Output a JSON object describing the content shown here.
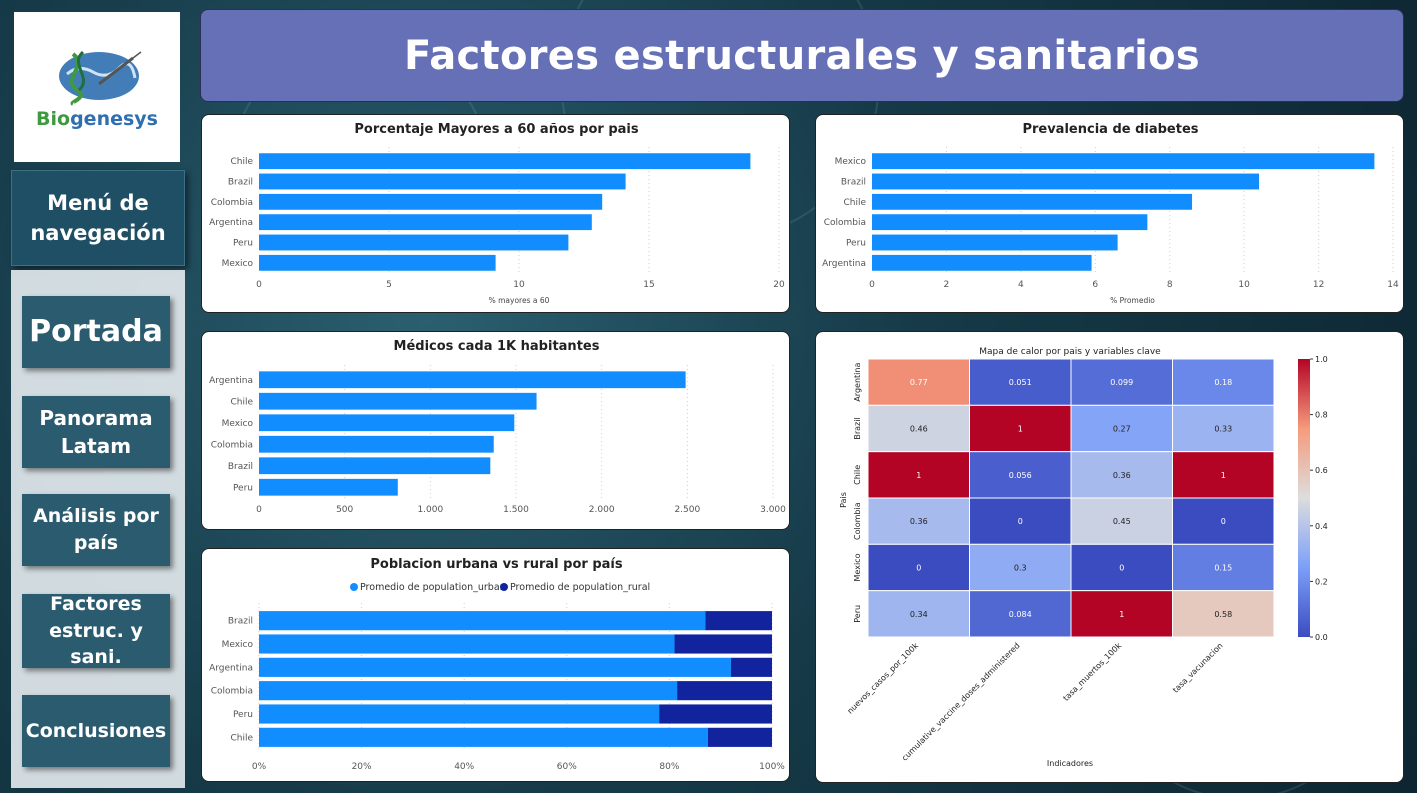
{
  "logo": {
    "text_part1": "Bio",
    "text_part2": "genesys"
  },
  "nav": {
    "menu_title_line1": "Menú de",
    "menu_title_line2": "navegación",
    "items": [
      {
        "line1": "Portada",
        "line2": ""
      },
      {
        "line1": "Panorama",
        "line2": "Latam"
      },
      {
        "line1": "Análisis por",
        "line2": "país"
      },
      {
        "line1": "Factores",
        "line2": "estruc. y sani."
      },
      {
        "line1": "Conclusiones",
        "line2": ""
      }
    ]
  },
  "header": {
    "title": "Factores estructurales y sanitarios"
  },
  "colors": {
    "bar": "#118dff",
    "bar_dark": "#12239e",
    "header": "#6670b6"
  },
  "chart_data": [
    {
      "type": "bar",
      "orientation": "horizontal",
      "title": "Porcentaje Mayores a 60 años por pais",
      "xlabel": "% mayores a 60",
      "categories": [
        "Chile",
        "Brazil",
        "Colombia",
        "Argentina",
        "Peru",
        "Mexico"
      ],
      "values": [
        18.9,
        14.1,
        13.2,
        12.8,
        11.9,
        9.1
      ],
      "xlim": [
        0,
        20
      ],
      "xticks": [
        "0",
        "5",
        "10",
        "15",
        "20"
      ],
      "grid": true
    },
    {
      "type": "bar",
      "orientation": "horizontal",
      "title": "Prevalencia de diabetes",
      "xlabel": "% Promedio",
      "categories": [
        "Mexico",
        "Brazil",
        "Chile",
        "Colombia",
        "Peru",
        "Argentina"
      ],
      "values": [
        13.5,
        10.4,
        8.6,
        7.4,
        6.6,
        5.9
      ],
      "xlim": [
        0,
        14
      ],
      "xticks": [
        "0",
        "2",
        "4",
        "6",
        "8",
        "10",
        "12",
        "14"
      ],
      "grid": true
    },
    {
      "type": "bar",
      "orientation": "horizontal",
      "title": "Médicos cada 1K habitantes",
      "xlabel": "",
      "categories": [
        "Argentina",
        "Chile",
        "Mexico",
        "Colombia",
        "Brazil",
        "Peru"
      ],
      "values": [
        2490,
        1620,
        1490,
        1370,
        1350,
        810
      ],
      "xlim": [
        0,
        3000
      ],
      "xticks": [
        "0",
        "500",
        "1.000",
        "1.500",
        "2.000",
        "2.500",
        "3.000"
      ],
      "grid": true
    },
    {
      "type": "bar",
      "orientation": "horizontal",
      "stacked": "percent",
      "title": "Poblacion urbana vs rural por país",
      "categories": [
        "Brazil",
        "Mexico",
        "Argentina",
        "Colombia",
        "Peru",
        "Chile"
      ],
      "series": [
        {
          "name": "Promedio de population_urban",
          "values": [
            87,
            81,
            92,
            81.5,
            78,
            87.5
          ]
        },
        {
          "name": "Promedio de population_rural",
          "values": [
            13,
            19,
            8,
            18.5,
            22,
            12.5
          ]
        }
      ],
      "xticks": [
        "0%",
        "20%",
        "40%",
        "60%",
        "80%",
        "100%"
      ],
      "legend": "top",
      "grid": true
    },
    {
      "type": "heatmap",
      "title": "Mapa de calor por pais y variables clave",
      "xlabel": "Indicadores",
      "ylabel": "Pais",
      "rows": [
        "Argentina",
        "Brazil",
        "Chile",
        "Colombia",
        "Mexico",
        "Peru"
      ],
      "columns": [
        "nuevos_casos_por_100k",
        "cumulative_vaccine_doses_administered",
        "tasa_muertos_100k",
        "tasa_vacunacion"
      ],
      "values": [
        [
          0.77,
          0.051,
          0.099,
          0.18
        ],
        [
          0.46,
          1,
          0.27,
          0.33
        ],
        [
          1,
          0.056,
          0.36,
          1
        ],
        [
          0.36,
          0,
          0.45,
          0
        ],
        [
          0,
          0.3,
          0,
          0.15
        ],
        [
          0.34,
          0.084,
          1,
          0.58
        ]
      ],
      "colorscale": "coolwarm",
      "vmin": 0,
      "vmax": 1,
      "colorbar_ticks": [
        "0.0",
        "0.2",
        "0.4",
        "0.6",
        "0.8",
        "1.0"
      ]
    }
  ]
}
